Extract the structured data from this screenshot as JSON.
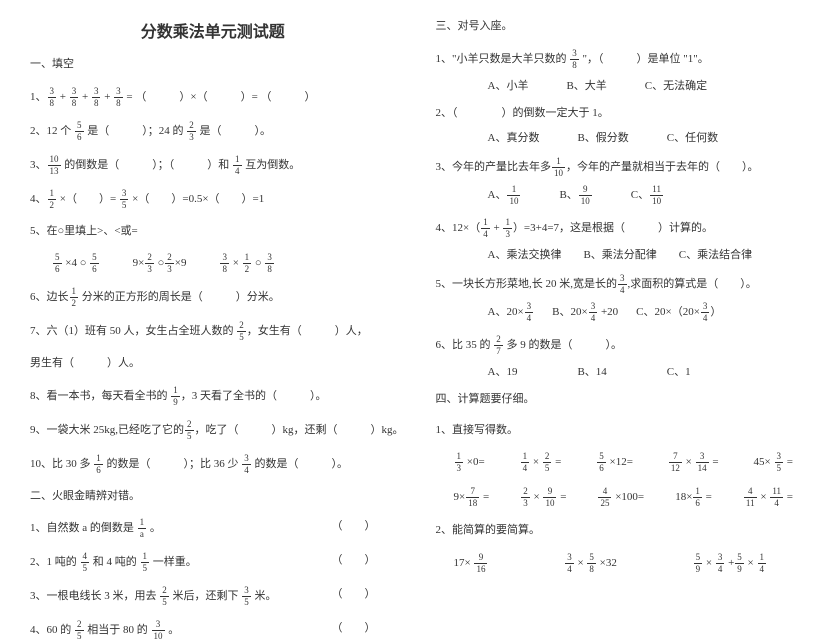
{
  "title": "分数乘法单元测试题",
  "left": {
    "s1": "一、填空",
    "q1a": "1、",
    "q1b": " + ",
    "q1c": " + ",
    "q1d": " + ",
    "q1e": " = （　　　）×（　　　）= （　　　）",
    "q2a": "2、12 个 ",
    "q2b": " 是（　　　）；24 的 ",
    "q2c": " 是（　　　）。",
    "q3a": "3、",
    "q3b": " 的倒数是（　　　）；（　　　）和 ",
    "q3c": " 互为倒数。",
    "q4a": "4、",
    "q4b": " ×（　　）= ",
    "q4c": " ×（　　）=0.5×（　　）=1",
    "q5": "5、在○里填上>、<或=",
    "q5la": " ×4 ○ ",
    "q5lb": "　　　9×",
    "q5lc": " ○",
    "q5ld": "×9　　　",
    "q5le": " × ",
    "q5lf": " ○ ",
    "q6a": "6、边长",
    "q6b": " 分米的正方形的周长是（　　　）分米。",
    "q7a": "7、六（1）班有 50 人，女生占全班人数的 ",
    "q7b": "，女生有（　　　）人，",
    "q7c": "男生有（　　　）人。",
    "q8a": "8、看一本书，每天看全书的 ",
    "q8b": "，3 天看了全书的（　　　）。",
    "q9a": "9、一袋大米 25kg,已经吃了它的",
    "q9b": "，吃了（　　　）kg，还剩（　　　）kg。",
    "q10a": "10、比 30 多 ",
    "q10b": " 的数是（　　　）；比 36 少 ",
    "q10c": " 的数是（　　　）。",
    "s2": "二、火眼金睛辨对错。",
    "j1a": "1、自然数 a 的倒数是 ",
    "j1b": " 。",
    "j1t": "（　　）",
    "j2a": "2、1 吨的 ",
    "j2b": " 和 4 吨的 ",
    "j2c": " 一样重。",
    "j2t": "（　　）",
    "j3a": "3、一根电线长 3 米，用去 ",
    "j3b": " 米后，还剩下 ",
    "j3c": " 米。",
    "j3t": "（　　）",
    "j4a": "4、60 的 ",
    "j4b": " 相当于 80 的 ",
    "j4c": " 。",
    "j4t": "（　　）"
  },
  "right": {
    "s3": "三、对号入座。",
    "r1a": "1、\"小羊只数是大羊只数的 ",
    "r1b": " \"，（　　　）是单位 \"1\"。",
    "r1oA": "A、小羊",
    "r1oB": "B、大羊",
    "r1oC": "C、无法确定",
    "r2": "2、（　　　　）的倒数一定大于 1。",
    "r2oA": "A、真分数",
    "r2oB": "B、假分数",
    "r2oC": "C、任何数",
    "r3a": "3、今年的产量比去年多",
    "r3b": "，今年的产量就相当于去年的（　　）。",
    "r3oA": "A、",
    "r3oB": "B、",
    "r3oC": "C、",
    "r4a": "4、12×（",
    "r4b": " + ",
    "r4c": "）=3+4=7，这是根据（　　　）计算的。",
    "r4oA": "A、乘法交换律",
    "r4oB": "B、乘法分配律",
    "r4oC": "C、乘法结合律",
    "r5a": "5、一块长方形菜地,长 20 米,宽是长的",
    "r5b": ",求面积的算式是（　　）。",
    "r5oA": "A、20×",
    "r5oB": "B、20×",
    "r5oBb": " +20",
    "r5oC": "C、20×（20×",
    "r5oCb": "）",
    "r6a": "6、比 35 的 ",
    "r6b": " 多 9 的数是（　　　）。",
    "r6oA": "A、19",
    "r6oB": "B、14",
    "r6oC": "C、1",
    "s4": "四、计算题要仔细。",
    "s4a": "1、直接写得数。",
    "c1a": " ×0=",
    "c1b": " × ",
    "c1c": " =",
    "c1d": " ×12=",
    "c1e": " × ",
    "c1f": " =",
    "c1g": "45× ",
    "c1h": " =",
    "c2a": "9×",
    "c2b": " =",
    "c2c": " × ",
    "c2d": " =",
    "c2e": " ×100=",
    "c2f": "18×",
    "c2g": " =",
    "c2h": " × ",
    "c2i": " =",
    "s4b": "2、能简算的要简算。",
    "sc1a": "17× ",
    "sc2a": " × ",
    "sc2b": " ×32",
    "sc3a": " × ",
    "sc3b": " +",
    "sc3c": " × "
  },
  "fracs": {
    "f3_8": {
      "n": "3",
      "d": "8"
    },
    "f5_6": {
      "n": "5",
      "d": "6"
    },
    "f2_3": {
      "n": "2",
      "d": "3"
    },
    "f10_13": {
      "n": "10",
      "d": "13"
    },
    "f1_4": {
      "n": "1",
      "d": "4"
    },
    "f1_2": {
      "n": "1",
      "d": "2"
    },
    "f3_5": {
      "n": "3",
      "d": "5"
    },
    "f2_5": {
      "n": "2",
      "d": "5"
    },
    "f1_9": {
      "n": "1",
      "d": "9"
    },
    "f1_6": {
      "n": "1",
      "d": "6"
    },
    "f3_4": {
      "n": "3",
      "d": "4"
    },
    "f1_a": {
      "n": "1",
      "d": "a"
    },
    "f4_5": {
      "n": "4",
      "d": "5"
    },
    "f1_5": {
      "n": "1",
      "d": "5"
    },
    "f3_10": {
      "n": "3",
      "d": "10"
    },
    "f1_10": {
      "n": "1",
      "d": "10"
    },
    "f9_10": {
      "n": "9",
      "d": "10"
    },
    "f11_10": {
      "n": "11",
      "d": "10"
    },
    "f1_3": {
      "n": "1",
      "d": "3"
    },
    "f2_7": {
      "n": "2",
      "d": "7"
    },
    "f7_12": {
      "n": "7",
      "d": "12"
    },
    "f3_14": {
      "n": "3",
      "d": "14"
    },
    "f7_18": {
      "n": "7",
      "d": "18"
    },
    "f9_10b": {
      "n": "9",
      "d": "10"
    },
    "f4_25": {
      "n": "4",
      "d": "25"
    },
    "f4_11": {
      "n": "4",
      "d": "11"
    },
    "f11_4": {
      "n": "11",
      "d": "4"
    },
    "f9_16": {
      "n": "9",
      "d": "16"
    },
    "f5_8": {
      "n": "5",
      "d": "8"
    },
    "f5_9": {
      "n": "5",
      "d": "9"
    }
  }
}
